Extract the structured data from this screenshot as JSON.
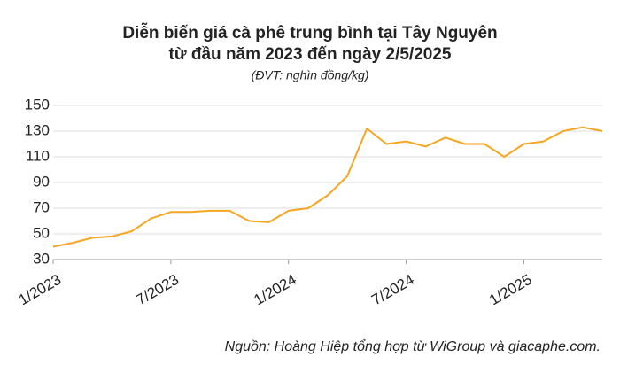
{
  "chart_data": {
    "type": "line",
    "title": "Diễn biến giá cà phê trung bình tại Tây Nguyên",
    "subtitle": "từ đầu năm 2023 đến ngày 2/5/2025",
    "unit_note": "(ĐVT: nghìn đồng/kg)",
    "source": "Nguồn: Hoàng Hiệp tổng hợp từ WiGroup và giacaphe.com.",
    "categories": [
      "1/2023",
      null,
      null,
      null,
      null,
      null,
      "7/2023",
      null,
      null,
      null,
      null,
      null,
      "1/2024",
      null,
      null,
      null,
      null,
      null,
      "7/2024",
      null,
      null,
      null,
      null,
      null,
      "1/2025",
      null,
      null,
      null,
      null
    ],
    "values": [
      40,
      43,
      47,
      48,
      52,
      62,
      67,
      67,
      68,
      68,
      60,
      59,
      68,
      70,
      80,
      95,
      132,
      120,
      122,
      118,
      125,
      120,
      120,
      110,
      120,
      122,
      130,
      133,
      130
    ],
    "color": "#f5a623",
    "ylim": [
      30,
      150
    ],
    "yticks": [
      30,
      50,
      70,
      90,
      110,
      130,
      150
    ],
    "grid": true
  }
}
